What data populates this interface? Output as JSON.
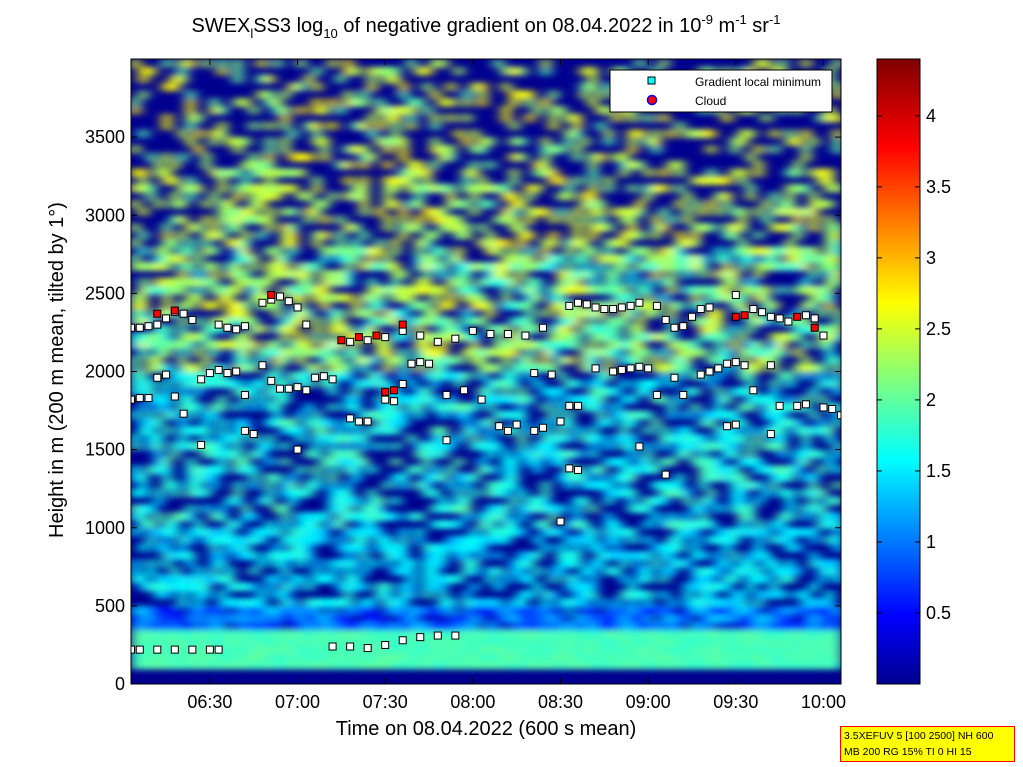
{
  "chart_data": {
    "type": "heatmap",
    "title_parts": {
      "p1": "SWEX",
      "sub1": "l",
      "p2": "SS3 log",
      "sub2": "10",
      "p3": " of negative gradient on 08.04.2022 in 10",
      "sup1": "-9",
      "p4": " m",
      "sup2": "-1",
      "p5": " sr",
      "sup3": "-1"
    },
    "xlabel": "Time on 08.04.2022 (600 s mean)",
    "ylabel": "Height in m (200 m mean, tilted by 1°)",
    "xlim_hours": [
      6.05,
      10.1
    ],
    "ylim": [
      0,
      4000
    ],
    "x_ticks": [
      {
        "h": 6.5,
        "label": "06:30"
      },
      {
        "h": 7.0,
        "label": "07:00"
      },
      {
        "h": 7.5,
        "label": "07:30"
      },
      {
        "h": 8.0,
        "label": "08:00"
      },
      {
        "h": 8.5,
        "label": "08:30"
      },
      {
        "h": 9.0,
        "label": "09:00"
      },
      {
        "h": 9.5,
        "label": "09:30"
      },
      {
        "h": 10.0,
        "label": "10:00"
      }
    ],
    "y_ticks": [
      {
        "v": 0,
        "label": "0"
      },
      {
        "v": 500,
        "label": "500"
      },
      {
        "v": 1000,
        "label": "1000"
      },
      {
        "v": 1500,
        "label": "1500"
      },
      {
        "v": 2000,
        "label": "2000"
      },
      {
        "v": 2500,
        "label": "2500"
      },
      {
        "v": 3000,
        "label": "3000"
      },
      {
        "v": 3500,
        "label": "3500"
      }
    ],
    "colorbar": {
      "range": [
        0,
        4.4
      ],
      "ticks": [
        {
          "v": 0.5,
          "label": "0.5"
        },
        {
          "v": 1.0,
          "label": "1"
        },
        {
          "v": 1.5,
          "label": "1.5"
        },
        {
          "v": 2.0,
          "label": "2"
        },
        {
          "v": 2.5,
          "label": "2.5"
        },
        {
          "v": 3.0,
          "label": "3"
        },
        {
          "v": 3.5,
          "label": "3.5"
        },
        {
          "v": 4.0,
          "label": "4"
        }
      ]
    },
    "legend": {
      "placement": "top-right",
      "items": [
        {
          "label": "Gradient local minimum",
          "color": "#00ffff",
          "marker": "square"
        },
        {
          "label": "Cloud",
          "color": "#ff0000",
          "marker": "circle"
        }
      ]
    },
    "series": [
      {
        "name": "Gradient local minimum",
        "points": [
          [
            6.05,
            220
          ],
          [
            6.1,
            220
          ],
          [
            6.2,
            220
          ],
          [
            6.3,
            220
          ],
          [
            6.4,
            220
          ],
          [
            6.5,
            220
          ],
          [
            6.55,
            220
          ],
          [
            7.2,
            240
          ],
          [
            7.3,
            240
          ],
          [
            7.4,
            230
          ],
          [
            7.5,
            250
          ],
          [
            7.6,
            280
          ],
          [
            7.7,
            300
          ],
          [
            7.8,
            310
          ],
          [
            7.9,
            310
          ],
          [
            6.05,
            1820
          ],
          [
            6.1,
            1830
          ],
          [
            6.15,
            1830
          ],
          [
            6.2,
            1960
          ],
          [
            6.25,
            1980
          ],
          [
            6.3,
            1840
          ],
          [
            6.35,
            1730
          ],
          [
            6.45,
            1950
          ],
          [
            6.5,
            1990
          ],
          [
            6.55,
            2010
          ],
          [
            6.6,
            1990
          ],
          [
            6.65,
            2000
          ],
          [
            6.7,
            1850
          ],
          [
            6.8,
            2040
          ],
          [
            6.85,
            1940
          ],
          [
            6.9,
            1890
          ],
          [
            6.95,
            1890
          ],
          [
            7.0,
            1900
          ],
          [
            7.05,
            1880
          ],
          [
            7.1,
            1960
          ],
          [
            7.15,
            1970
          ],
          [
            7.2,
            1950
          ],
          [
            7.3,
            1700
          ],
          [
            7.35,
            1680
          ],
          [
            7.4,
            1680
          ],
          [
            7.5,
            1820
          ],
          [
            7.55,
            1810
          ],
          [
            7.6,
            1920
          ],
          [
            7.65,
            2050
          ],
          [
            7.7,
            2060
          ],
          [
            7.75,
            2050
          ],
          [
            7.85,
            1850
          ],
          [
            7.95,
            1880
          ],
          [
            8.05,
            1820
          ],
          [
            8.15,
            1650
          ],
          [
            8.2,
            1620
          ],
          [
            8.25,
            1660
          ],
          [
            8.35,
            1990
          ],
          [
            8.45,
            1980
          ],
          [
            8.5,
            1680
          ],
          [
            8.55,
            1780
          ],
          [
            8.6,
            1780
          ],
          [
            8.7,
            2020
          ],
          [
            8.8,
            2000
          ],
          [
            8.85,
            2010
          ],
          [
            8.9,
            2020
          ],
          [
            8.95,
            2030
          ],
          [
            9.0,
            2020
          ],
          [
            9.05,
            1850
          ],
          [
            9.15,
            1960
          ],
          [
            9.2,
            1850
          ],
          [
            9.3,
            1980
          ],
          [
            9.35,
            2000
          ],
          [
            9.4,
            2020
          ],
          [
            9.45,
            2050
          ],
          [
            9.5,
            2060
          ],
          [
            9.55,
            2040
          ],
          [
            9.6,
            1880
          ],
          [
            9.7,
            2040
          ],
          [
            9.75,
            1780
          ],
          [
            9.85,
            1780
          ],
          [
            9.9,
            1790
          ],
          [
            10.0,
            1770
          ],
          [
            10.05,
            1760
          ],
          [
            10.1,
            1720
          ],
          [
            6.05,
            2280
          ],
          [
            6.1,
            2280
          ],
          [
            6.15,
            2290
          ],
          [
            6.2,
            2300
          ],
          [
            6.25,
            2340
          ],
          [
            6.3,
            2380
          ],
          [
            6.35,
            2370
          ],
          [
            6.4,
            2330
          ],
          [
            6.55,
            2300
          ],
          [
            6.6,
            2280
          ],
          [
            6.65,
            2270
          ],
          [
            6.7,
            2290
          ],
          [
            6.8,
            2440
          ],
          [
            6.85,
            2460
          ],
          [
            6.9,
            2480
          ],
          [
            6.95,
            2450
          ],
          [
            7.0,
            2410
          ],
          [
            7.05,
            2300
          ],
          [
            7.3,
            2190
          ],
          [
            7.4,
            2200
          ],
          [
            7.5,
            2220
          ],
          [
            7.6,
            2260
          ],
          [
            7.7,
            2230
          ],
          [
            7.8,
            2190
          ],
          [
            7.9,
            2210
          ],
          [
            8.0,
            2260
          ],
          [
            8.1,
            2240
          ],
          [
            8.2,
            2240
          ],
          [
            8.3,
            2230
          ],
          [
            8.4,
            2280
          ],
          [
            8.55,
            2420
          ],
          [
            8.6,
            2440
          ],
          [
            8.65,
            2430
          ],
          [
            8.7,
            2410
          ],
          [
            8.75,
            2400
          ],
          [
            8.8,
            2400
          ],
          [
            8.85,
            2410
          ],
          [
            8.9,
            2420
          ],
          [
            8.95,
            2440
          ],
          [
            9.05,
            2420
          ],
          [
            9.1,
            2330
          ],
          [
            9.15,
            2280
          ],
          [
            9.2,
            2290
          ],
          [
            9.25,
            2350
          ],
          [
            9.3,
            2400
          ],
          [
            9.35,
            2410
          ],
          [
            9.5,
            2490
          ],
          [
            9.6,
            2400
          ],
          [
            9.65,
            2380
          ],
          [
            9.7,
            2350
          ],
          [
            9.75,
            2340
          ],
          [
            9.8,
            2320
          ],
          [
            9.9,
            2360
          ],
          [
            9.95,
            2340
          ],
          [
            10.0,
            2230
          ],
          [
            6.7,
            1620
          ],
          [
            6.75,
            1600
          ],
          [
            7.0,
            1500
          ],
          [
            7.85,
            1560
          ],
          [
            8.35,
            1620
          ],
          [
            8.4,
            1640
          ],
          [
            8.55,
            1380
          ],
          [
            8.6,
            1370
          ],
          [
            9.1,
            1340
          ],
          [
            9.45,
            1650
          ],
          [
            9.5,
            1660
          ],
          [
            9.7,
            1600
          ],
          [
            8.5,
            1040
          ],
          [
            6.45,
            1530
          ],
          [
            8.95,
            1520
          ]
        ]
      },
      {
        "name": "Cloud",
        "points": [
          [
            6.2,
            2370
          ],
          [
            6.3,
            2390
          ],
          [
            6.85,
            2490
          ],
          [
            7.25,
            2200
          ],
          [
            7.35,
            2220
          ],
          [
            7.45,
            2230
          ],
          [
            7.6,
            2300
          ],
          [
            7.5,
            1870
          ],
          [
            7.55,
            1880
          ],
          [
            9.5,
            2350
          ],
          [
            9.55,
            2360
          ],
          [
            9.85,
            2350
          ],
          [
            9.95,
            2280
          ]
        ]
      }
    ],
    "heatmap_layers_note": ""
  },
  "param_box": {
    "line1": "3.5XEFUV 5 [100 2500] NH 600",
    "line2": "MB 200 RG 15% TI 0 HI 15"
  }
}
